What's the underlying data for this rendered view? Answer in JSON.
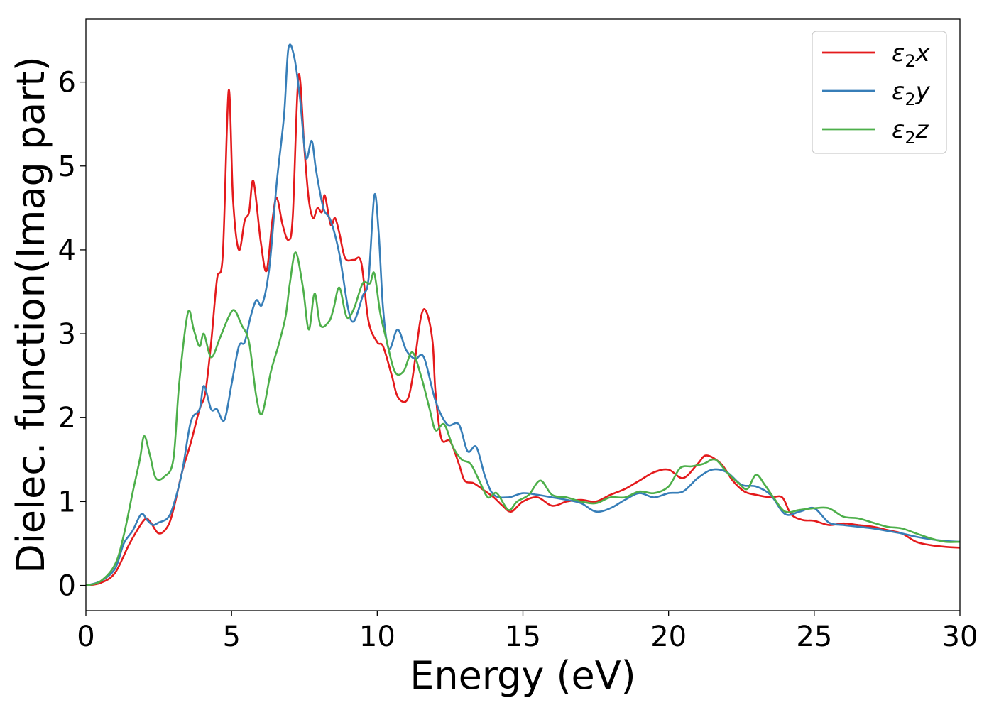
{
  "chart_data": {
    "type": "line",
    "title": "",
    "xlabel": "Energy (eV)",
    "ylabel": "Dielec. function(Imag part)",
    "xlim": [
      0,
      30
    ],
    "ylim": [
      -0.3,
      6.75
    ],
    "xticks": [
      0,
      5,
      10,
      15,
      20,
      25,
      30
    ],
    "yticks": [
      0,
      1,
      2,
      3,
      4,
      5,
      6
    ],
    "grid": false,
    "legend_position": "top-right",
    "series": [
      {
        "name": "ε₂x",
        "legend_base": "ε",
        "legend_sub": "2",
        "legend_suffix": "x",
        "color": "#e41a1c",
        "points": [
          [
            0,
            0
          ],
          [
            0.5,
            0.03
          ],
          [
            1.0,
            0.15
          ],
          [
            1.5,
            0.5
          ],
          [
            2.0,
            0.78
          ],
          [
            2.2,
            0.76
          ],
          [
            2.5,
            0.62
          ],
          [
            2.8,
            0.7
          ],
          [
            3.0,
            0.9
          ],
          [
            3.3,
            1.35
          ],
          [
            3.6,
            1.7
          ],
          [
            3.9,
            2.1
          ],
          [
            4.1,
            2.3
          ],
          [
            4.3,
            2.9
          ],
          [
            4.5,
            3.65
          ],
          [
            4.7,
            3.95
          ],
          [
            4.9,
            5.9
          ],
          [
            5.05,
            4.6
          ],
          [
            5.25,
            4.0
          ],
          [
            5.45,
            4.35
          ],
          [
            5.6,
            4.45
          ],
          [
            5.75,
            4.82
          ],
          [
            6.0,
            4.1
          ],
          [
            6.2,
            3.75
          ],
          [
            6.4,
            4.35
          ],
          [
            6.55,
            4.62
          ],
          [
            6.75,
            4.3
          ],
          [
            6.95,
            4.12
          ],
          [
            7.1,
            4.4
          ],
          [
            7.3,
            6.08
          ],
          [
            7.5,
            5.2
          ],
          [
            7.65,
            4.6
          ],
          [
            7.8,
            4.38
          ],
          [
            7.95,
            4.5
          ],
          [
            8.1,
            4.45
          ],
          [
            8.2,
            4.65
          ],
          [
            8.4,
            4.3
          ],
          [
            8.55,
            4.38
          ],
          [
            8.7,
            4.2
          ],
          [
            8.9,
            3.9
          ],
          [
            9.2,
            3.88
          ],
          [
            9.45,
            3.85
          ],
          [
            9.7,
            3.15
          ],
          [
            10.0,
            2.9
          ],
          [
            10.2,
            2.85
          ],
          [
            10.5,
            2.5
          ],
          [
            10.7,
            2.25
          ],
          [
            11.0,
            2.2
          ],
          [
            11.2,
            2.45
          ],
          [
            11.5,
            3.2
          ],
          [
            11.7,
            3.25
          ],
          [
            11.9,
            2.9
          ],
          [
            12.0,
            2.3
          ],
          [
            12.2,
            1.75
          ],
          [
            12.5,
            1.72
          ],
          [
            12.8,
            1.45
          ],
          [
            13.0,
            1.25
          ],
          [
            13.3,
            1.22
          ],
          [
            13.6,
            1.15
          ],
          [
            14.0,
            1.05
          ],
          [
            14.3,
            0.95
          ],
          [
            14.6,
            0.88
          ],
          [
            15.0,
            1.0
          ],
          [
            15.5,
            1.05
          ],
          [
            16.0,
            0.95
          ],
          [
            16.5,
            1.0
          ],
          [
            17.0,
            1.02
          ],
          [
            17.5,
            1.0
          ],
          [
            18.0,
            1.08
          ],
          [
            18.5,
            1.15
          ],
          [
            19.0,
            1.25
          ],
          [
            19.5,
            1.35
          ],
          [
            20.0,
            1.38
          ],
          [
            20.5,
            1.28
          ],
          [
            21.0,
            1.45
          ],
          [
            21.3,
            1.55
          ],
          [
            21.8,
            1.45
          ],
          [
            22.2,
            1.25
          ],
          [
            22.6,
            1.12
          ],
          [
            23.0,
            1.08
          ],
          [
            23.5,
            1.05
          ],
          [
            23.9,
            1.05
          ],
          [
            24.2,
            0.85
          ],
          [
            24.6,
            0.78
          ],
          [
            25.0,
            0.77
          ],
          [
            25.5,
            0.72
          ],
          [
            26.0,
            0.74
          ],
          [
            26.5,
            0.72
          ],
          [
            27.0,
            0.7
          ],
          [
            27.5,
            0.66
          ],
          [
            28.0,
            0.62
          ],
          [
            28.5,
            0.52
          ],
          [
            29.0,
            0.48
          ],
          [
            29.5,
            0.46
          ],
          [
            30.0,
            0.45
          ]
        ]
      },
      {
        "name": "ε₂y",
        "legend_base": "ε",
        "legend_sub": "2",
        "legend_suffix": "y",
        "color": "#377eb8",
        "points": [
          [
            0,
            0
          ],
          [
            0.5,
            0.05
          ],
          [
            1.0,
            0.2
          ],
          [
            1.3,
            0.5
          ],
          [
            1.6,
            0.65
          ],
          [
            1.9,
            0.85
          ],
          [
            2.1,
            0.78
          ],
          [
            2.3,
            0.72
          ],
          [
            2.5,
            0.75
          ],
          [
            2.8,
            0.8
          ],
          [
            3.0,
            0.95
          ],
          [
            3.3,
            1.35
          ],
          [
            3.6,
            1.95
          ],
          [
            3.9,
            2.1
          ],
          [
            4.05,
            2.38
          ],
          [
            4.3,
            2.1
          ],
          [
            4.5,
            2.1
          ],
          [
            4.75,
            1.97
          ],
          [
            5.0,
            2.4
          ],
          [
            5.25,
            2.85
          ],
          [
            5.45,
            2.9
          ],
          [
            5.65,
            3.2
          ],
          [
            5.85,
            3.4
          ],
          [
            6.05,
            3.35
          ],
          [
            6.3,
            3.8
          ],
          [
            6.55,
            4.8
          ],
          [
            6.8,
            5.6
          ],
          [
            6.95,
            6.4
          ],
          [
            7.15,
            6.3
          ],
          [
            7.35,
            5.8
          ],
          [
            7.55,
            5.1
          ],
          [
            7.75,
            5.3
          ],
          [
            7.9,
            4.95
          ],
          [
            8.15,
            4.5
          ],
          [
            8.4,
            4.35
          ],
          [
            8.7,
            3.95
          ],
          [
            9.0,
            3.3
          ],
          [
            9.2,
            3.15
          ],
          [
            9.5,
            3.45
          ],
          [
            9.7,
            3.65
          ],
          [
            9.9,
            4.65
          ],
          [
            10.05,
            4.2
          ],
          [
            10.2,
            3.3
          ],
          [
            10.4,
            2.82
          ],
          [
            10.7,
            3.05
          ],
          [
            11.0,
            2.8
          ],
          [
            11.3,
            2.7
          ],
          [
            11.6,
            2.72
          ],
          [
            12.0,
            2.2
          ],
          [
            12.4,
            1.92
          ],
          [
            12.8,
            1.92
          ],
          [
            13.1,
            1.6
          ],
          [
            13.4,
            1.65
          ],
          [
            13.7,
            1.3
          ],
          [
            14.0,
            1.08
          ],
          [
            14.5,
            1.05
          ],
          [
            15.0,
            1.1
          ],
          [
            15.5,
            1.08
          ],
          [
            16.0,
            1.05
          ],
          [
            16.5,
            1.02
          ],
          [
            17.0,
            0.98
          ],
          [
            17.5,
            0.88
          ],
          [
            18.0,
            0.92
          ],
          [
            18.5,
            1.02
          ],
          [
            19.0,
            1.1
          ],
          [
            19.5,
            1.05
          ],
          [
            20.0,
            1.1
          ],
          [
            20.5,
            1.12
          ],
          [
            21.0,
            1.28
          ],
          [
            21.5,
            1.38
          ],
          [
            22.0,
            1.35
          ],
          [
            22.5,
            1.2
          ],
          [
            23.0,
            1.18
          ],
          [
            23.5,
            1.08
          ],
          [
            24.0,
            0.85
          ],
          [
            24.5,
            0.88
          ],
          [
            25.0,
            0.92
          ],
          [
            25.5,
            0.75
          ],
          [
            26.0,
            0.72
          ],
          [
            26.5,
            0.7
          ],
          [
            27.0,
            0.68
          ],
          [
            27.5,
            0.65
          ],
          [
            28.0,
            0.62
          ],
          [
            28.5,
            0.58
          ],
          [
            29.0,
            0.55
          ],
          [
            29.5,
            0.53
          ],
          [
            30.0,
            0.52
          ]
        ]
      },
      {
        "name": "ε₂z",
        "legend_base": "ε",
        "legend_sub": "2",
        "legend_suffix": "z",
        "color": "#4daf4a",
        "points": [
          [
            0,
            0
          ],
          [
            0.5,
            0.05
          ],
          [
            1.0,
            0.25
          ],
          [
            1.3,
            0.6
          ],
          [
            1.6,
            1.1
          ],
          [
            1.85,
            1.5
          ],
          [
            2.0,
            1.78
          ],
          [
            2.2,
            1.55
          ],
          [
            2.4,
            1.28
          ],
          [
            2.7,
            1.3
          ],
          [
            3.0,
            1.5
          ],
          [
            3.2,
            2.4
          ],
          [
            3.5,
            3.25
          ],
          [
            3.7,
            3.05
          ],
          [
            3.9,
            2.85
          ],
          [
            4.05,
            3.0
          ],
          [
            4.3,
            2.72
          ],
          [
            4.6,
            2.95
          ],
          [
            4.9,
            3.2
          ],
          [
            5.1,
            3.28
          ],
          [
            5.35,
            3.1
          ],
          [
            5.6,
            2.9
          ],
          [
            5.85,
            2.25
          ],
          [
            6.05,
            2.05
          ],
          [
            6.35,
            2.55
          ],
          [
            6.6,
            2.85
          ],
          [
            6.85,
            3.2
          ],
          [
            7.0,
            3.6
          ],
          [
            7.2,
            3.97
          ],
          [
            7.45,
            3.55
          ],
          [
            7.65,
            3.05
          ],
          [
            7.85,
            3.48
          ],
          [
            8.05,
            3.1
          ],
          [
            8.35,
            3.15
          ],
          [
            8.5,
            3.3
          ],
          [
            8.7,
            3.55
          ],
          [
            8.95,
            3.2
          ],
          [
            9.2,
            3.3
          ],
          [
            9.5,
            3.6
          ],
          [
            9.75,
            3.6
          ],
          [
            9.9,
            3.72
          ],
          [
            10.1,
            3.25
          ],
          [
            10.3,
            2.95
          ],
          [
            10.6,
            2.55
          ],
          [
            10.9,
            2.55
          ],
          [
            11.2,
            2.78
          ],
          [
            11.5,
            2.5
          ],
          [
            11.8,
            2.1
          ],
          [
            12.0,
            1.85
          ],
          [
            12.3,
            1.92
          ],
          [
            12.6,
            1.65
          ],
          [
            12.9,
            1.5
          ],
          [
            13.2,
            1.45
          ],
          [
            13.5,
            1.25
          ],
          [
            13.8,
            1.05
          ],
          [
            14.1,
            1.1
          ],
          [
            14.5,
            0.9
          ],
          [
            14.8,
            1.0
          ],
          [
            15.2,
            1.08
          ],
          [
            15.6,
            1.25
          ],
          [
            16.0,
            1.08
          ],
          [
            16.5,
            1.05
          ],
          [
            17.0,
            1.0
          ],
          [
            17.5,
            0.98
          ],
          [
            18.0,
            1.05
          ],
          [
            18.5,
            1.05
          ],
          [
            19.0,
            1.12
          ],
          [
            19.5,
            1.1
          ],
          [
            20.0,
            1.18
          ],
          [
            20.4,
            1.4
          ],
          [
            20.8,
            1.42
          ],
          [
            21.2,
            1.45
          ],
          [
            21.6,
            1.5
          ],
          [
            22.0,
            1.35
          ],
          [
            22.4,
            1.22
          ],
          [
            22.7,
            1.15
          ],
          [
            23.0,
            1.32
          ],
          [
            23.3,
            1.2
          ],
          [
            23.6,
            1.05
          ],
          [
            24.0,
            0.88
          ],
          [
            24.5,
            0.9
          ],
          [
            25.0,
            0.92
          ],
          [
            25.5,
            0.92
          ],
          [
            26.0,
            0.82
          ],
          [
            26.5,
            0.8
          ],
          [
            27.0,
            0.75
          ],
          [
            27.5,
            0.7
          ],
          [
            28.0,
            0.68
          ],
          [
            28.5,
            0.62
          ],
          [
            29.0,
            0.56
          ],
          [
            29.5,
            0.52
          ],
          [
            30.0,
            0.52
          ]
        ]
      }
    ]
  }
}
